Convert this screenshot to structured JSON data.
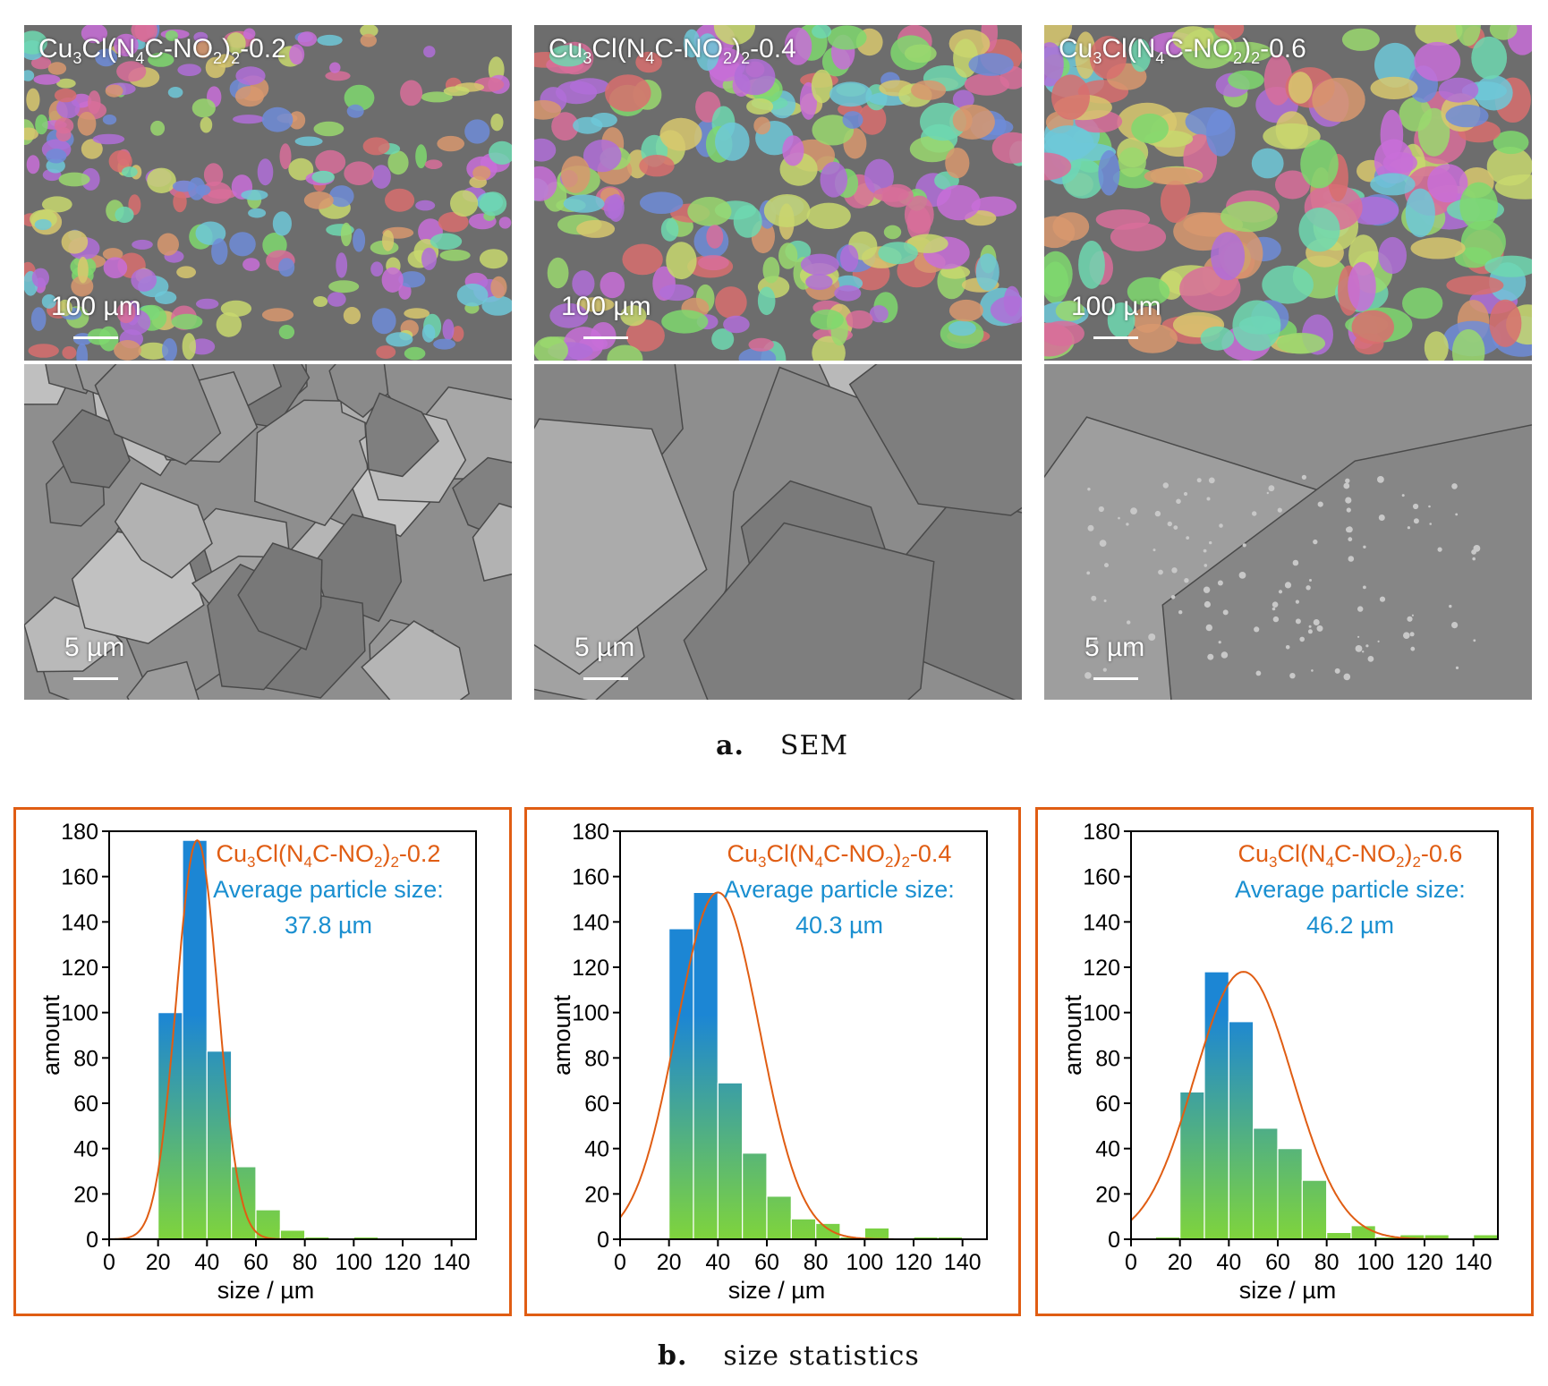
{
  "sem": {
    "panels": [
      {
        "label_main": "Cu",
        "s1": "3",
        "m2": "Cl(N",
        "s2": "4",
        "m3": "C-NO",
        "s3": "2",
        "m4": ")",
        "s4": "2",
        "m5": "-0.2",
        "scale_top": "100 µm",
        "scale_bottom": "5 µm"
      },
      {
        "label_main": "Cu",
        "s1": "3",
        "m2": "Cl(N",
        "s2": "4",
        "m3": "C-NO",
        "s3": "2",
        "m4": ")",
        "s4": "2",
        "m5": "-0.4",
        "scale_top": "100 µm",
        "scale_bottom": "5 µm"
      },
      {
        "label_main": "Cu",
        "s1": "3",
        "m2": "Cl(N",
        "s2": "4",
        "m3": "C-NO",
        "s3": "2",
        "m4": ")",
        "s4": "2",
        "m5": "-0.6",
        "scale_top": "100 µm",
        "scale_bottom": "5 µm"
      }
    ],
    "caption_letter": "a.",
    "caption_text": "SEM"
  },
  "stats": {
    "caption_letter": "b.",
    "caption_text": "size statistics"
  },
  "colors": {
    "accent": "#e05d13",
    "text_blue": "#1a8fd0",
    "bar_top": "#1c86d4",
    "bar_bottom": "#7fd43c"
  },
  "chart_data": [
    {
      "type": "bar",
      "title_parts": [
        "Cu",
        "3",
        "Cl(N",
        "4",
        "C-NO",
        "2",
        ")",
        "2",
        "-0.2"
      ],
      "annotation_line1": "Average particle size:",
      "annotation_line2": "37.8 µm",
      "xlabel": "size / µm",
      "ylabel": "amount",
      "xlim": [
        0,
        150
      ],
      "ylim": [
        0,
        180
      ],
      "xticks": [
        0,
        20,
        40,
        60,
        80,
        100,
        120,
        140
      ],
      "yticks": [
        0,
        20,
        40,
        60,
        80,
        100,
        120,
        140,
        160,
        180
      ],
      "bin_width": 10,
      "bins": [
        20,
        30,
        40,
        50,
        60,
        70,
        80,
        90,
        100,
        110
      ],
      "values": [
        100,
        176,
        83,
        32,
        13,
        4,
        1,
        0,
        1,
        0
      ],
      "fit": {
        "mean": 36,
        "sd": 8.5,
        "peak": 176
      }
    },
    {
      "type": "bar",
      "title_parts": [
        "Cu",
        "3",
        "Cl(N",
        "4",
        "C-NO",
        "2",
        ")",
        "2",
        "-0.4"
      ],
      "annotation_line1": "Average particle size:",
      "annotation_line2": "40.3 µm",
      "xlabel": "size / µm",
      "ylabel": "amount",
      "xlim": [
        0,
        150
      ],
      "ylim": [
        0,
        180
      ],
      "xticks": [
        0,
        20,
        40,
        60,
        80,
        100,
        120,
        140
      ],
      "yticks": [
        0,
        20,
        40,
        60,
        80,
        100,
        120,
        140,
        160,
        180
      ],
      "bin_width": 10,
      "bins": [
        20,
        30,
        40,
        50,
        60,
        70,
        80,
        90,
        100,
        110,
        120,
        130
      ],
      "values": [
        137,
        153,
        69,
        38,
        19,
        9,
        7,
        1,
        5,
        0,
        1,
        1
      ],
      "fit": {
        "mean": 40,
        "sd": 17,
        "peak": 153
      }
    },
    {
      "type": "bar",
      "title_parts": [
        "Cu",
        "3",
        "Cl(N",
        "4",
        "C-NO",
        "2",
        ")",
        "2",
        "-0.6"
      ],
      "annotation_line1": "Average particle size:",
      "annotation_line2": "46.2 µm",
      "xlabel": "size / µm",
      "ylabel": "amount",
      "xlim": [
        0,
        150
      ],
      "ylim": [
        0,
        180
      ],
      "xticks": [
        0,
        20,
        40,
        60,
        80,
        100,
        120,
        140
      ],
      "yticks": [
        0,
        20,
        40,
        60,
        80,
        100,
        120,
        140,
        160,
        180
      ],
      "bin_width": 10,
      "bins": [
        10,
        20,
        30,
        40,
        50,
        60,
        70,
        80,
        90,
        100,
        110,
        120,
        130,
        140
      ],
      "values": [
        1,
        65,
        118,
        96,
        49,
        40,
        26,
        3,
        6,
        1,
        2,
        2,
        0,
        2
      ],
      "fit": {
        "mean": 46,
        "sd": 20,
        "peak": 118
      }
    }
  ]
}
